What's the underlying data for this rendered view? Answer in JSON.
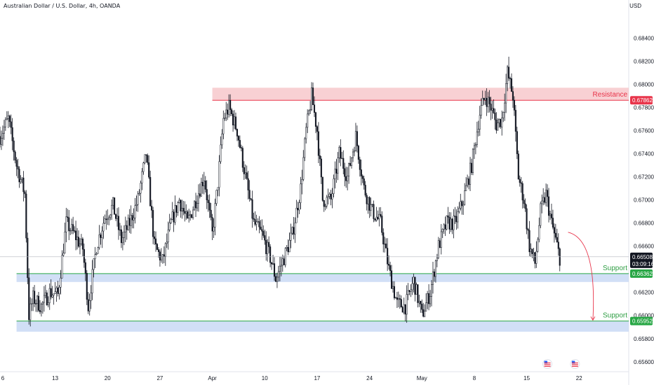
{
  "header": {
    "title": "Australian Dollar / U.S. Dollar, 4h, OANDA",
    "currency": "USD"
  },
  "colors": {
    "up": "#131722",
    "resistance_fill": "#f7c8cb",
    "resistance_line": "#e8344a",
    "support_fill": "#c9d9f5",
    "support_line": "#28a745",
    "price_line": "#b2b5be",
    "forecast_arrow": "#e8344a",
    "support_label": "#2f9e44",
    "resistance_label": "#e8344a"
  },
  "chart_data": {
    "type": "candlestick",
    "instrument": "Australian Dollar / U.S. Dollar",
    "timeframe": "4h",
    "source": "OANDA",
    "ylim": [
      0.6552,
      0.6862
    ],
    "y_ticks": [
      "0.68400",
      "0.68200",
      "0.68000",
      "0.67800",
      "0.67600",
      "0.67400",
      "0.67200",
      "0.67000",
      "0.66800",
      "0.66600",
      "0.66200",
      "0.66000",
      "0.65800",
      "0.65600"
    ],
    "y_tick_values": [
      0.684,
      0.682,
      0.68,
      0.678,
      0.676,
      0.674,
      0.672,
      0.67,
      0.668,
      0.666,
      0.662,
      0.66,
      0.658,
      0.656
    ],
    "x_ticks": [
      "6",
      "13",
      "20",
      "27",
      "Apr",
      "10",
      "17",
      "24",
      "May",
      "8",
      "15",
      "22"
    ],
    "x_tick_index": [
      2,
      40,
      78,
      116,
      154,
      192,
      230,
      268,
      306,
      344,
      382,
      420
    ],
    "index_range": [
      0,
      456
    ],
    "close_path": [
      [
        0,
        0.6755
      ],
      [
        6,
        0.677
      ],
      [
        12,
        0.673
      ],
      [
        18,
        0.6705
      ],
      [
        21,
        0.66
      ],
      [
        24,
        0.6615
      ],
      [
        30,
        0.6608
      ],
      [
        36,
        0.662
      ],
      [
        42,
        0.6618
      ],
      [
        48,
        0.668
      ],
      [
        54,
        0.667
      ],
      [
        60,
        0.6658
      ],
      [
        64,
        0.6608
      ],
      [
        70,
        0.666
      ],
      [
        76,
        0.6685
      ],
      [
        82,
        0.6695
      ],
      [
        88,
        0.6665
      ],
      [
        94,
        0.668
      ],
      [
        100,
        0.67
      ],
      [
        106,
        0.674
      ],
      [
        112,
        0.666
      ],
      [
        118,
        0.6647
      ],
      [
        124,
        0.668
      ],
      [
        130,
        0.67
      ],
      [
        136,
        0.668
      ],
      [
        142,
        0.67
      ],
      [
        148,
        0.672
      ],
      [
        154,
        0.667
      ],
      [
        158,
        0.6715
      ],
      [
        162,
        0.677
      ],
      [
        166,
        0.678
      ],
      [
        172,
        0.676
      ],
      [
        178,
        0.672
      ],
      [
        184,
        0.668
      ],
      [
        190,
        0.667
      ],
      [
        196,
        0.665
      ],
      [
        200,
        0.6632
      ],
      [
        206,
        0.665
      ],
      [
        212,
        0.667
      ],
      [
        218,
        0.671
      ],
      [
        222,
        0.676
      ],
      [
        226,
        0.679
      ],
      [
        230,
        0.676
      ],
      [
        234,
        0.67
      ],
      [
        240,
        0.67
      ],
      [
        246,
        0.674
      ],
      [
        252,
        0.672
      ],
      [
        258,
        0.6755
      ],
      [
        264,
        0.671
      ],
      [
        270,
        0.669
      ],
      [
        276,
        0.668
      ],
      [
        282,
        0.664
      ],
      [
        288,
        0.661
      ],
      [
        294,
        0.6608
      ],
      [
        300,
        0.663
      ],
      [
        306,
        0.66
      ],
      [
        312,
        0.662
      ],
      [
        318,
        0.666
      ],
      [
        324,
        0.668
      ],
      [
        330,
        0.668
      ],
      [
        336,
        0.67
      ],
      [
        342,
        0.673
      ],
      [
        348,
        0.6775
      ],
      [
        352,
        0.679
      ],
      [
        356,
        0.678
      ],
      [
        360,
        0.6765
      ],
      [
        364,
        0.677
      ],
      [
        368,
        0.681
      ],
      [
        372,
        0.679
      ],
      [
        376,
        0.672
      ],
      [
        380,
        0.67
      ],
      [
        384,
        0.666
      ],
      [
        388,
        0.6645
      ],
      [
        392,
        0.669
      ],
      [
        396,
        0.6705
      ],
      [
        400,
        0.668
      ],
      [
        404,
        0.666
      ],
      [
        406,
        0.665
      ]
    ],
    "last_price": 0.66508,
    "last_price_label": "0.66508",
    "countdown_label": "03:09:16",
    "levels": [
      {
        "name": "Resistance",
        "zone": [
          0.6786,
          0.6797
        ],
        "line": 0.67862,
        "label": "0.67862",
        "type": "resistance"
      },
      {
        "name": "Support",
        "zone": [
          0.6629,
          0.66362
        ],
        "line": 0.66362,
        "label": "0.66362",
        "type": "support"
      },
      {
        "name": "Support",
        "zone": [
          0.6586,
          0.65952
        ],
        "line": 0.65952,
        "label": "0.65952",
        "type": "support"
      }
    ],
    "forecast_arrow": {
      "from": [
        412,
        0.6672
      ],
      "to": [
        430,
        0.6596
      ]
    },
    "grid": false
  }
}
